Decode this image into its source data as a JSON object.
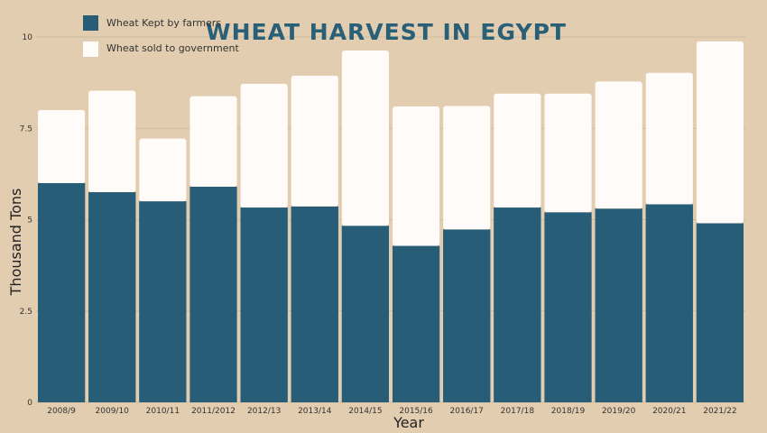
{
  "chart_data": {
    "type": "bar",
    "stacked": true,
    "title": "WHEAT HARVEST IN EGYPT",
    "xlabel": "Year",
    "ylabel": "Thousand  Tons",
    "ylim": [
      0,
      10
    ],
    "yticks": [
      0,
      2.5,
      5,
      7.5,
      10
    ],
    "ytick_labels": [
      "0",
      "2.5",
      "5",
      "7.5",
      "10"
    ],
    "grid": true,
    "legend_position": "top-left",
    "categories": [
      "2008/9",
      "2009/10",
      "2010/11",
      "2011/2012",
      "2012/13",
      "2013/14",
      "2014/15",
      "2015/16",
      "2016/17",
      "2017/18",
      "2018/19",
      "2019/20",
      "2020/21",
      "2021/22"
    ],
    "series": [
      {
        "name": "Wheat Kept by farmers",
        "color": "#285d78",
        "values": [
          6.0,
          5.75,
          5.5,
          5.9,
          5.33,
          5.36,
          4.83,
          4.28,
          4.73,
          5.33,
          5.2,
          5.3,
          5.42,
          4.9
        ]
      },
      {
        "name": "Wheat sold to government",
        "color": "#fefbf8",
        "values": [
          2.0,
          2.78,
          1.72,
          2.48,
          3.39,
          3.58,
          4.8,
          3.82,
          3.38,
          3.12,
          3.25,
          3.48,
          3.6,
          4.98
        ]
      }
    ]
  }
}
